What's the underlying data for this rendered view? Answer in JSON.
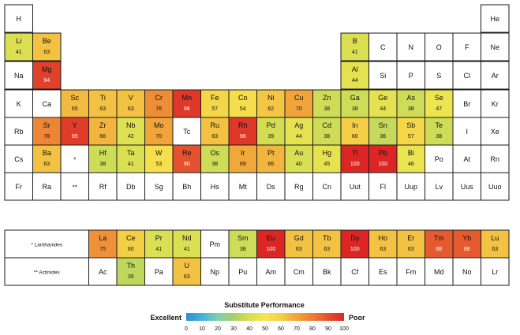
{
  "chart_data": {
    "type": "heatmap",
    "title": "",
    "colorscale": {
      "label": "Substitute Performance",
      "low_label": "Excellent",
      "high_label": "Poor",
      "ticks": [
        "0",
        "10",
        "20",
        "30",
        "40",
        "50",
        "60",
        "70",
        "80",
        "90",
        "100"
      ],
      "stops": [
        "#2e8fd0",
        "#46b3d6",
        "#7ecfb2",
        "#a8cf6a",
        "#d8df52",
        "#f5e74e",
        "#f4cf46",
        "#f0a43a",
        "#ec7e34",
        "#e4512e",
        "#dc2626"
      ]
    },
    "cells": [
      {
        "symbol": "H",
        "row": 1,
        "col": 1
      },
      {
        "symbol": "He",
        "row": 1,
        "col": 18
      },
      {
        "symbol": "Li",
        "row": 2,
        "col": 1,
        "value": 41
      },
      {
        "symbol": "Be",
        "row": 2,
        "col": 2,
        "value": 63
      },
      {
        "symbol": "B",
        "row": 2,
        "col": 13,
        "value": 41
      },
      {
        "symbol": "C",
        "row": 2,
        "col": 14
      },
      {
        "symbol": "N",
        "row": 2,
        "col": 15
      },
      {
        "symbol": "O",
        "row": 2,
        "col": 16
      },
      {
        "symbol": "F",
        "row": 2,
        "col": 17
      },
      {
        "symbol": "Ne",
        "row": 2,
        "col": 18
      },
      {
        "symbol": "Na",
        "row": 3,
        "col": 1
      },
      {
        "symbol": "Mg",
        "row": 3,
        "col": 2,
        "value": 94
      },
      {
        "symbol": "Al",
        "row": 3,
        "col": 13,
        "value": 44
      },
      {
        "symbol": "Si",
        "row": 3,
        "col": 14
      },
      {
        "symbol": "P",
        "row": 3,
        "col": 15
      },
      {
        "symbol": "S",
        "row": 3,
        "col": 16
      },
      {
        "symbol": "Cl",
        "row": 3,
        "col": 17
      },
      {
        "symbol": "Ar",
        "row": 3,
        "col": 18
      },
      {
        "symbol": "K",
        "row": 4,
        "col": 1
      },
      {
        "symbol": "Ca",
        "row": 4,
        "col": 2
      },
      {
        "symbol": "Sc",
        "row": 4,
        "col": 3,
        "value": 65
      },
      {
        "symbol": "Ti",
        "row": 4,
        "col": 4,
        "value": 63
      },
      {
        "symbol": "V",
        "row": 4,
        "col": 5,
        "value": 63
      },
      {
        "symbol": "Cr",
        "row": 4,
        "col": 6,
        "value": 76
      },
      {
        "symbol": "Mn",
        "row": 4,
        "col": 7,
        "value": 96
      },
      {
        "symbol": "Fe",
        "row": 4,
        "col": 8,
        "value": 57
      },
      {
        "symbol": "Co",
        "row": 4,
        "col": 9,
        "value": 54
      },
      {
        "symbol": "Ni",
        "row": 4,
        "col": 10,
        "value": 62
      },
      {
        "symbol": "Cu",
        "row": 4,
        "col": 11,
        "value": 70
      },
      {
        "symbol": "Zn",
        "row": 4,
        "col": 12,
        "value": 38
      },
      {
        "symbol": "Ga",
        "row": 4,
        "col": 13,
        "value": 38
      },
      {
        "symbol": "Ge",
        "row": 4,
        "col": 14,
        "value": 44
      },
      {
        "symbol": "As",
        "row": 4,
        "col": 15,
        "value": 38
      },
      {
        "symbol": "Se",
        "row": 4,
        "col": 16,
        "value": 47
      },
      {
        "symbol": "Br",
        "row": 4,
        "col": 17
      },
      {
        "symbol": "Kr",
        "row": 4,
        "col": 18
      },
      {
        "symbol": "Rb",
        "row": 5,
        "col": 1
      },
      {
        "symbol": "Sr",
        "row": 5,
        "col": 2,
        "value": 78
      },
      {
        "symbol": "Y",
        "row": 5,
        "col": 3,
        "value": 95
      },
      {
        "symbol": "Zr",
        "row": 5,
        "col": 4,
        "value": 66
      },
      {
        "symbol": "Nb",
        "row": 5,
        "col": 5,
        "value": 42
      },
      {
        "symbol": "Mo",
        "row": 5,
        "col": 6,
        "value": 70
      },
      {
        "symbol": "Tc",
        "row": 5,
        "col": 7
      },
      {
        "symbol": "Ru",
        "row": 5,
        "col": 8,
        "value": 63
      },
      {
        "symbol": "Rh",
        "row": 5,
        "col": 9,
        "value": 96
      },
      {
        "symbol": "Pd",
        "row": 5,
        "col": 10,
        "value": 39
      },
      {
        "symbol": "Ag",
        "row": 5,
        "col": 11,
        "value": 44
      },
      {
        "symbol": "Cd",
        "row": 5,
        "col": 12,
        "value": 38
      },
      {
        "symbol": "In",
        "row": 5,
        "col": 13,
        "value": 60
      },
      {
        "symbol": "Sn",
        "row": 5,
        "col": 14,
        "value": 36
      },
      {
        "symbol": "Sb",
        "row": 5,
        "col": 15,
        "value": 57
      },
      {
        "symbol": "Te",
        "row": 5,
        "col": 16,
        "value": 38
      },
      {
        "symbol": "I",
        "row": 5,
        "col": 17
      },
      {
        "symbol": "Xe",
        "row": 5,
        "col": 18
      },
      {
        "symbol": "Cs",
        "row": 6,
        "col": 1
      },
      {
        "symbol": "Ba",
        "row": 6,
        "col": 2,
        "value": 63
      },
      {
        "symbol": "*",
        "row": 6,
        "col": 3,
        "marker": true
      },
      {
        "symbol": "Hf",
        "row": 6,
        "col": 4,
        "value": 38
      },
      {
        "symbol": "Ta",
        "row": 6,
        "col": 5,
        "value": 41
      },
      {
        "symbol": "W",
        "row": 6,
        "col": 6,
        "value": 53
      },
      {
        "symbol": "Re",
        "row": 6,
        "col": 7,
        "value": 90
      },
      {
        "symbol": "Os",
        "row": 6,
        "col": 8,
        "value": 38
      },
      {
        "symbol": "Ir",
        "row": 6,
        "col": 9,
        "value": 69
      },
      {
        "symbol": "Pt",
        "row": 6,
        "col": 10,
        "value": 66
      },
      {
        "symbol": "Au",
        "row": 6,
        "col": 11,
        "value": 40
      },
      {
        "symbol": "Hg",
        "row": 6,
        "col": 12,
        "value": 45
      },
      {
        "symbol": "Tl",
        "row": 6,
        "col": 13,
        "value": 100
      },
      {
        "symbol": "Pb",
        "row": 6,
        "col": 14,
        "value": 100
      },
      {
        "symbol": "Bi",
        "row": 6,
        "col": 15,
        "value": 46
      },
      {
        "symbol": "Po",
        "row": 6,
        "col": 16
      },
      {
        "symbol": "At",
        "row": 6,
        "col": 17
      },
      {
        "symbol": "Rn",
        "row": 6,
        "col": 18
      },
      {
        "symbol": "Fr",
        "row": 7,
        "col": 1
      },
      {
        "symbol": "Ra",
        "row": 7,
        "col": 2
      },
      {
        "symbol": "**",
        "row": 7,
        "col": 3,
        "marker": true
      },
      {
        "symbol": "Rf",
        "row": 7,
        "col": 4
      },
      {
        "symbol": "Db",
        "row": 7,
        "col": 5
      },
      {
        "symbol": "Sg",
        "row": 7,
        "col": 6
      },
      {
        "symbol": "Bh",
        "row": 7,
        "col": 7
      },
      {
        "symbol": "Hs",
        "row": 7,
        "col": 8
      },
      {
        "symbol": "Mt",
        "row": 7,
        "col": 9
      },
      {
        "symbol": "Ds",
        "row": 7,
        "col": 10
      },
      {
        "symbol": "Rg",
        "row": 7,
        "col": 11
      },
      {
        "symbol": "Cn",
        "row": 7,
        "col": 12
      },
      {
        "symbol": "Uut",
        "row": 7,
        "col": 13
      },
      {
        "symbol": "Fl",
        "row": 7,
        "col": 14
      },
      {
        "symbol": "Uup",
        "row": 7,
        "col": 15
      },
      {
        "symbol": "Lv",
        "row": 7,
        "col": 16
      },
      {
        "symbol": "Uus",
        "row": 7,
        "col": 17
      },
      {
        "symbol": "Uuo",
        "row": 7,
        "col": 18
      },
      {
        "symbol": "La",
        "row": 9,
        "col": 4,
        "value": 75
      },
      {
        "symbol": "Ce",
        "row": 9,
        "col": 5,
        "value": 60
      },
      {
        "symbol": "Pr",
        "row": 9,
        "col": 6,
        "value": 41
      },
      {
        "symbol": "Nd",
        "row": 9,
        "col": 7,
        "value": 41
      },
      {
        "symbol": "Pm",
        "row": 9,
        "col": 8
      },
      {
        "symbol": "Sm",
        "row": 9,
        "col": 9,
        "value": 38
      },
      {
        "symbol": "Eu",
        "row": 9,
        "col": 10,
        "value": 100
      },
      {
        "symbol": "Gd",
        "row": 9,
        "col": 11,
        "value": 63
      },
      {
        "symbol": "Tb",
        "row": 9,
        "col": 12,
        "value": 63
      },
      {
        "symbol": "Dy",
        "row": 9,
        "col": 13,
        "value": 100
      },
      {
        "symbol": "Ho",
        "row": 9,
        "col": 14,
        "value": 63
      },
      {
        "symbol": "Er",
        "row": 9,
        "col": 15,
        "value": 63
      },
      {
        "symbol": "Tm",
        "row": 9,
        "col": 16,
        "value": 88
      },
      {
        "symbol": "Yb",
        "row": 9,
        "col": 17,
        "value": 88
      },
      {
        "symbol": "Lu",
        "row": 9,
        "col": 18,
        "value": 63
      },
      {
        "symbol": "Ac",
        "row": 10,
        "col": 4
      },
      {
        "symbol": "Th",
        "row": 10,
        "col": 5,
        "value": 35
      },
      {
        "symbol": "Pa",
        "row": 10,
        "col": 6
      },
      {
        "symbol": "U",
        "row": 10,
        "col": 7,
        "value": 63
      },
      {
        "symbol": "Np",
        "row": 10,
        "col": 8
      },
      {
        "symbol": "Pu",
        "row": 10,
        "col": 9
      },
      {
        "symbol": "Am",
        "row": 10,
        "col": 10
      },
      {
        "symbol": "Cm",
        "row": 10,
        "col": 11
      },
      {
        "symbol": "Bk",
        "row": 10,
        "col": 12
      },
      {
        "symbol": "Cf",
        "row": 10,
        "col": 13
      },
      {
        "symbol": "Es",
        "row": 10,
        "col": 14
      },
      {
        "symbol": "Fm",
        "row": 10,
        "col": 15
      },
      {
        "symbol": "Md",
        "row": 10,
        "col": 16
      },
      {
        "symbol": "No",
        "row": 10,
        "col": 17
      },
      {
        "symbol": "Lr",
        "row": 10,
        "col": 18
      }
    ],
    "series_labels": [
      {
        "row": 9,
        "text": "* Lanthanides"
      },
      {
        "row": 10,
        "text": "** Actinides"
      }
    ]
  }
}
